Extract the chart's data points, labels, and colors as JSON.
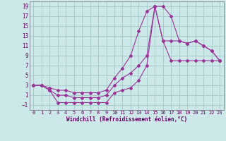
{
  "xlabel": "Windchill (Refroidissement éolien,°C)",
  "background_color": "#cce8e8",
  "grid_color": "#aacccc",
  "line_color": "#993399",
  "xlim": [
    -0.5,
    23.5
  ],
  "ylim": [
    -2.0,
    20.0
  ],
  "xticks": [
    0,
    1,
    2,
    3,
    4,
    5,
    6,
    7,
    8,
    9,
    10,
    11,
    12,
    13,
    14,
    15,
    16,
    17,
    18,
    19,
    20,
    21,
    22,
    23
  ],
  "yticks": [
    -1,
    1,
    3,
    5,
    7,
    9,
    11,
    13,
    15,
    17,
    19
  ],
  "line1_x": [
    0,
    1,
    2,
    3,
    4,
    5,
    6,
    7,
    8,
    9,
    10,
    11,
    12,
    13,
    14,
    15,
    16,
    17,
    18,
    19,
    20,
    21,
    22,
    23
  ],
  "line1_y": [
    3,
    3,
    2.5,
    2,
    2,
    1.5,
    1.5,
    1.5,
    1.5,
    2,
    4.5,
    6.5,
    9,
    14,
    18,
    19,
    19,
    17,
    12,
    11.5,
    12,
    11,
    10,
    8
  ],
  "line2_x": [
    0,
    1,
    2,
    3,
    4,
    5,
    6,
    7,
    8,
    9,
    10,
    11,
    12,
    13,
    14,
    15,
    16,
    17,
    18,
    19,
    20,
    21,
    22,
    23
  ],
  "line2_y": [
    3,
    3,
    2,
    1,
    1,
    0.5,
    0.5,
    0.5,
    0.5,
    1,
    3,
    4.5,
    5.5,
    7,
    9,
    19,
    12,
    12,
    12,
    11.5,
    12,
    11,
    10,
    8
  ],
  "line3_x": [
    0,
    1,
    2,
    3,
    4,
    5,
    6,
    7,
    8,
    9,
    10,
    11,
    12,
    13,
    14,
    15,
    16,
    17,
    18,
    19,
    20,
    21,
    22,
    23
  ],
  "line3_y": [
    3,
    3,
    2,
    -0.5,
    -0.5,
    -0.5,
    -0.5,
    -0.5,
    -0.5,
    -0.5,
    1.5,
    2,
    2.5,
    4,
    7,
    19,
    12,
    8,
    8,
    8,
    8,
    8,
    8,
    8
  ]
}
